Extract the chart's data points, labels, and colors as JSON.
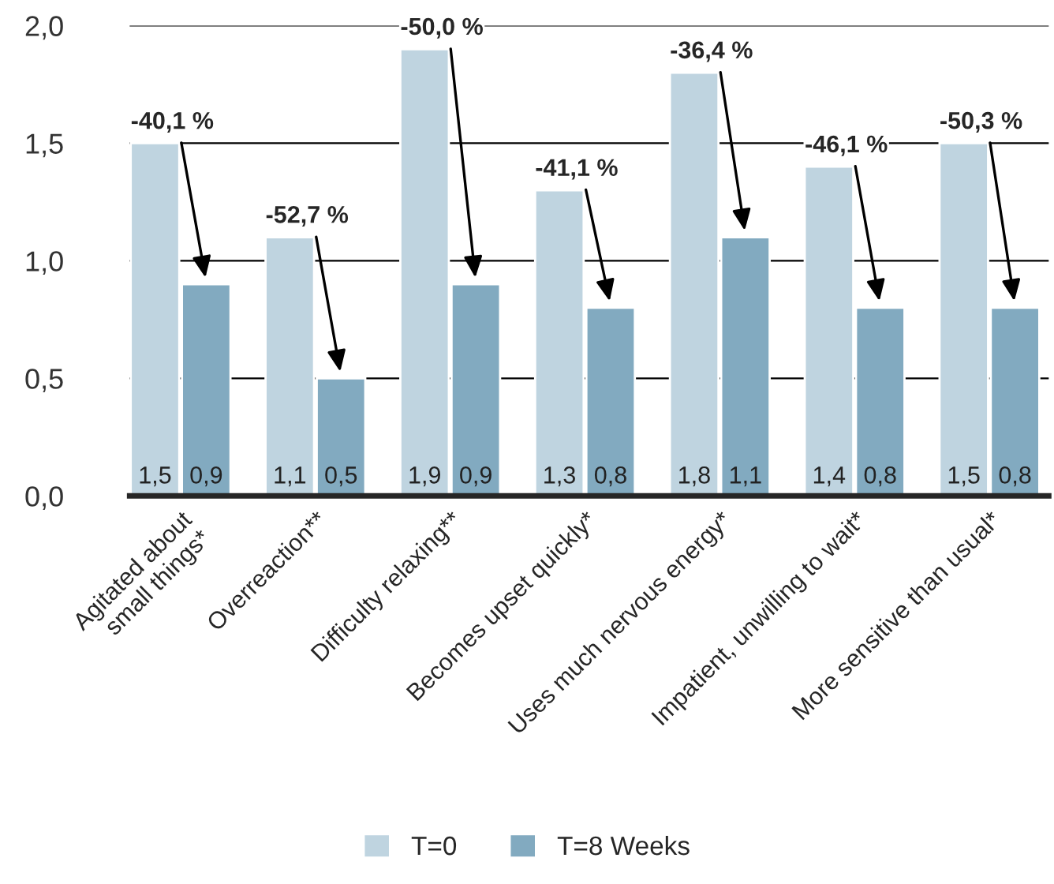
{
  "chart_data": {
    "type": "bar",
    "categories": [
      "Agitated about\nsmall things*",
      "Overreaction**",
      "Difficulty relaxing**",
      "Becomes upset quickly*",
      "Uses much nervous energy*",
      "Impatient, unwilling to wait*",
      "More sensitive than usual*"
    ],
    "series": [
      {
        "name": "T=0",
        "color": "#bfd4e0",
        "values": [
          1.5,
          1.1,
          1.9,
          1.3,
          1.8,
          1.4,
          1.5
        ],
        "value_labels": [
          "1,5",
          "1,1",
          "1,9",
          "1,3",
          "1,8",
          "1,4",
          "1,5"
        ]
      },
      {
        "name": "T=8 Weeks",
        "color": "#82aac0",
        "values": [
          0.9,
          0.5,
          0.9,
          0.8,
          1.1,
          0.8,
          0.8
        ],
        "value_labels": [
          "0,9",
          "0,5",
          "0,9",
          "0,8",
          "1,1",
          "0,8",
          "0,8"
        ]
      }
    ],
    "annotations": [
      "-40,1 %",
      "-52,7 %",
      "-50,0 %",
      "-41,1 %",
      "-36,4 %",
      "-46,1 %",
      "-50,3 %"
    ],
    "ylim": [
      0,
      2.0
    ],
    "yticks": [
      {
        "value": 0,
        "label": "0,0"
      },
      {
        "value": 0.5,
        "label": "0,5"
      },
      {
        "value": 1.0,
        "label": "1,0"
      },
      {
        "value": 1.5,
        "label": "1,5"
      },
      {
        "value": 2.0,
        "label": "2,0"
      }
    ],
    "grid": "y",
    "legend": "bottom"
  }
}
